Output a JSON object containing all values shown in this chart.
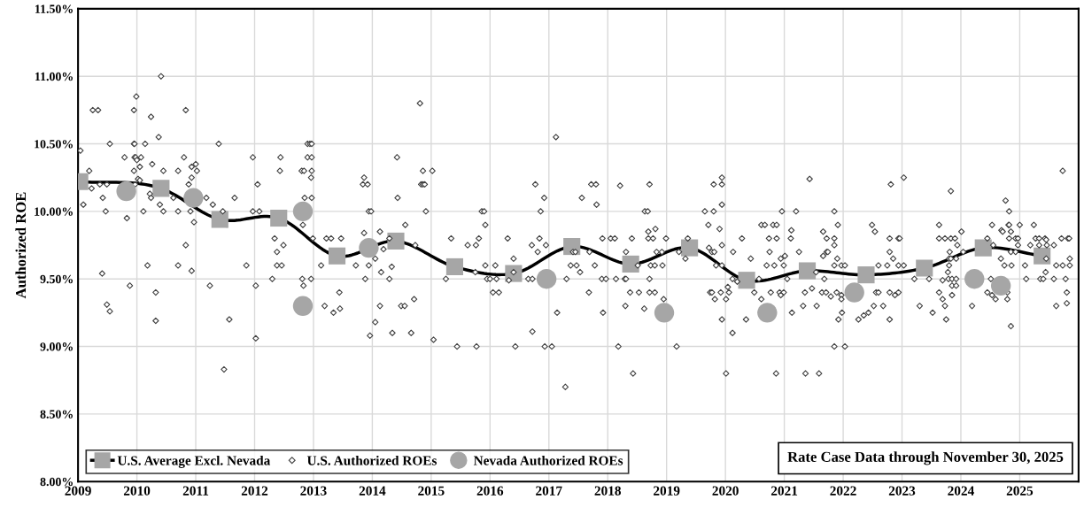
{
  "chart_data": {
    "type": "scatter",
    "ylabel": "Authorized ROE",
    "xlim": [
      2009,
      2026
    ],
    "xticks": [
      2009,
      2010,
      2011,
      2012,
      2013,
      2014,
      2015,
      2016,
      2017,
      2018,
      2019,
      2020,
      2021,
      2022,
      2023,
      2024,
      2025
    ],
    "ylim": [
      8.0,
      11.5
    ],
    "yticks": [
      {
        "value": 8.0,
        "label": "8.00%"
      },
      {
        "value": 8.5,
        "label": "8.50%"
      },
      {
        "value": 9.0,
        "label": "9.00%"
      },
      {
        "value": 9.5,
        "label": "9.50%"
      },
      {
        "value": 10.0,
        "label": "10.00%"
      },
      {
        "value": 10.5,
        "label": "10.50%"
      },
      {
        "value": 11.0,
        "label": "11.00%"
      },
      {
        "value": 11.5,
        "label": "11.50%"
      }
    ],
    "grid": true,
    "legend": "bottom left",
    "annotations": [
      "Rate Case Data through November 30, 2025"
    ],
    "series": [
      {
        "name": "U.S. Average Excl. Nevada",
        "type": "line",
        "marker": "square",
        "line_style": "solid",
        "color": "#000000",
        "colors": [
          "#a6a6a6",
          "#a6a6a6",
          "#a6a6a6",
          "#a6a6a6",
          "#a6a6a6",
          "#a6a6a6",
          "#a6a6a6",
          "#a6a6a6",
          "#a6a6a6",
          "#a6a6a6",
          "#a6a6a6",
          "#a6a6a6",
          "#a6a6a6",
          "#a6a6a6",
          "#a6a6a6",
          "#a6a6a6",
          "#a6a6a6"
        ],
        "x": [
          2009.03,
          2010.41,
          2011.41,
          2012.41,
          2013.4,
          2014.4,
          2015.4,
          2016.4,
          2017.39,
          2018.39,
          2019.39,
          2020.36,
          2021.39,
          2022.39,
          2023.38,
          2024.38,
          2025.38
        ],
        "values": [
          10.22,
          10.17,
          9.94,
          9.95,
          9.67,
          9.78,
          9.59,
          9.54,
          9.74,
          9.61,
          9.73,
          9.49,
          9.56,
          9.53,
          9.58,
          9.73,
          9.67
        ]
      },
      {
        "name": "U.S. Authorized ROEs",
        "marker": "diamond",
        "color": "#404040",
        "x": [
          2010.41,
          2009.99,
          2009.25,
          2009.34,
          2009.95,
          2010.83,
          2010.24,
          2010.37,
          2009.04,
          2009.54,
          2009.95,
          2009.96,
          2010.14,
          2011.39,
          2009.79,
          2009.96,
          2009.98,
          2010.07,
          2010.8,
          2010.0,
          2010.05,
          2010.26,
          2010.93,
          2011.0,
          2011.02,
          2009.19,
          2009.95,
          2010.45,
          2010.7,
          2010.02,
          2010.05,
          2010.93,
          2010.88,
          2009.37,
          2009.49,
          2009.23,
          2009.97,
          2010.22,
          2010.24,
          2009.42,
          2010.62,
          2011.18,
          2011.66,
          2009.09,
          2010.39,
          2011.29,
          2009.47,
          2010.11,
          2010.45,
          2010.7,
          2010.91,
          2011.46,
          2009.83,
          2010.97,
          2010.83,
          2010.18,
          2010.7,
          2010.93,
          2011.86,
          2009.41,
          2009.88,
          2011.24,
          2010.32,
          2009.49,
          2009.54,
          2010.32,
          2011.57,
          2011.48,
          2012.9,
          2012.94,
          2012.97,
          2011.97,
          2012.44,
          2012.9,
          2012.97,
          2014.42,
          2012.43,
          2012.8,
          2012.84,
          2012.97,
          2012.96,
          2013.86,
          2012.05,
          2013.84,
          2013.92,
          2012.85,
          2012.97,
          2014.43,
          2011.97,
          2012.08,
          2013.94,
          2013.98,
          2012.82,
          2014.56,
          2012.34,
          2012.99,
          2013.22,
          2013.3,
          2013.47,
          2013.86,
          2014.13,
          2014.29,
          2012.49,
          2012.38,
          2014.19,
          2012.38,
          2012.46,
          2013.13,
          2013.72,
          2013.94,
          2014.33,
          2014.05,
          2012.3,
          2012.81,
          2012.96,
          2013.88,
          2014.15,
          2014.29,
          2012.02,
          2012.83,
          2013.44,
          2013.19,
          2013.34,
          2013.45,
          2014.13,
          2014.49,
          2014.55,
          2014.05,
          2013.96,
          2014.34,
          2012.02,
          2014.66,
          2014.71,
          2014.81,
          2017.12,
          2014.86,
          2015.02,
          2014.83,
          2014.86,
          2014.89,
          2016.77,
          2016.92,
          2017.56,
          2014.91,
          2015.86,
          2015.9,
          2016.86,
          2015.92,
          2015.34,
          2015.81,
          2016.3,
          2016.84,
          2014.73,
          2015.62,
          2015.76,
          2016.71,
          2016.95,
          2016.81,
          2016.4,
          2017.41,
          2017.45,
          2015.92,
          2016.09,
          2017.37,
          2017.47,
          2017.53,
          2015.75,
          2016.4,
          2015.25,
          2015.95,
          2016.0,
          2016.11,
          2016.32,
          2016.65,
          2016.72,
          2017.3,
          2016.05,
          2016.15,
          2017.14,
          2016.72,
          2015.04,
          2015.44,
          2015.77,
          2016.43,
          2016.93,
          2017.05,
          2017.28,
          2017.72,
          2017.8,
          2018.21,
          2018.71,
          2017.81,
          2019.94,
          2019.8,
          2019.94,
          2019.94,
          2018.63,
          2018.68,
          2019.65,
          2019.8,
          2019.71,
          2019.9,
          2018.69,
          2018.81,
          2017.91,
          2018.05,
          2018.12,
          2018.41,
          2018.69,
          2018.77,
          2018.99,
          2019.36,
          2020.28,
          2019.94,
          2017.69,
          2018.31,
          2018.83,
          2018.92,
          2019.21,
          2019.72,
          2019.77,
          2019.81,
          2020.13,
          2020.43,
          2017.78,
          2018.51,
          2018.73,
          2018.8,
          2018.93,
          2019.32,
          2019.84,
          2019.94,
          2017.9,
          2017.97,
          2018.14,
          2018.29,
          2018.31,
          2018.71,
          2020.12,
          2020.2,
          2017.68,
          2018.38,
          2018.53,
          2018.71,
          2018.8,
          2018.95,
          2019.74,
          2019.77,
          2019.92,
          2020.06,
          2019.82,
          2020.01,
          2020.04,
          2017.92,
          2018.3,
          2018.62,
          2019.94,
          2020.12,
          2020.35,
          2018.18,
          2019.17,
          2018.43,
          2020.01,
          2021.43,
          2022.81,
          2023.03,
          2020.96,
          2021.2,
          2021.85,
          2020.61,
          2020.67,
          2020.81,
          2020.87,
          2021.91,
          2022.49,
          2021.12,
          2021.66,
          2022.54,
          2020.74,
          2020.87,
          2021.11,
          2021.72,
          2021.85,
          2022.79,
          2022.94,
          2022.96,
          2021.85,
          2020.75,
          2021.25,
          2021.72,
          2021.74,
          2022.79,
          2020.94,
          2021.01,
          2021.66,
          2021.9,
          2022.85,
          2020.7,
          2020.83,
          2020.99,
          2021.54,
          2021.85,
          2021.97,
          2022.03,
          2022.6,
          2022.75,
          2022.94,
          2023.03,
          2020.57,
          2021.05,
          2021.68,
          2023.21,
          2020.49,
          2020.77,
          2020.92,
          2020.99,
          2021.35,
          2021.64,
          2021.71,
          2021.89,
          2021.97,
          2020.94,
          2022.56,
          2022.6,
          2022.79,
          2022.94,
          2022.88,
          2020.61,
          2021.47,
          2021.79,
          2021.97,
          2021.32,
          2021.55,
          2022.52,
          2022.68,
          2023.3,
          2021.13,
          2021.98,
          2021.92,
          2022.26,
          2022.35,
          2022.43,
          2022.79,
          2021.85,
          2022.03,
          2020.86,
          2021.36,
          2021.59,
          2025.73,
          2023.83,
          2024.76,
          2024.82,
          2023.63,
          2024.53,
          2024.81,
          2024.82,
          2025.0,
          2025.24,
          2024.01,
          2024.69,
          2024.71,
          2024.85,
          2023.63,
          2023.73,
          2023.83,
          2023.9,
          2024.45,
          2024.82,
          2024.93,
          2024.97,
          2025.27,
          2025.33,
          2025.43,
          2025.45,
          2025.71,
          2025.82,
          2025.84,
          2023.94,
          2024.55,
          2024.97,
          2025.18,
          2025.33,
          2025.46,
          2025.58,
          2023.81,
          2024.04,
          2024.85,
          2024.93,
          2023.8,
          2023.83,
          2023.92,
          2024.68,
          2025.45,
          2025.85,
          2023.8,
          2024.74,
          2024.86,
          2025.09,
          2025.62,
          2025.73,
          2025.85,
          2025.44,
          2023.78,
          2023.69,
          2023.79,
          2023.85,
          2023.92,
          2023.46,
          2024.51,
          2025.11,
          2025.35,
          2025.4,
          2025.58,
          2025.78,
          2023.85,
          2023.92,
          2023.63,
          2024.45,
          2024.53,
          2024.59,
          2024.79,
          2024.79,
          2025.8,
          2023.69,
          2023.85,
          2023.73,
          2024.19,
          2025.62,
          2025.8,
          2023.52,
          2023.75,
          2024.85
        ],
        "values": [
          11.0,
          10.85,
          10.75,
          10.75,
          10.75,
          10.75,
          10.7,
          10.55,
          10.45,
          10.5,
          10.5,
          10.5,
          10.5,
          10.5,
          10.4,
          10.4,
          10.4,
          10.4,
          10.4,
          10.38,
          10.33,
          10.35,
          10.33,
          10.35,
          10.3,
          10.3,
          10.3,
          10.3,
          10.3,
          10.24,
          10.23,
          10.25,
          10.2,
          10.2,
          10.2,
          10.17,
          10.2,
          10.13,
          10.1,
          10.1,
          10.1,
          10.1,
          10.1,
          10.05,
          10.05,
          10.05,
          10.0,
          10.0,
          10.0,
          10.0,
          10.0,
          10.0,
          9.95,
          9.92,
          9.75,
          9.6,
          9.6,
          9.56,
          9.6,
          9.54,
          9.45,
          9.45,
          9.4,
          9.31,
          9.26,
          9.19,
          9.2,
          8.83,
          10.5,
          10.5,
          10.5,
          10.4,
          10.4,
          10.4,
          10.4,
          10.4,
          10.3,
          10.3,
          10.3,
          10.3,
          10.25,
          10.25,
          10.2,
          10.2,
          10.2,
          10.1,
          10.1,
          10.1,
          10.0,
          10.0,
          10.0,
          10.0,
          9.9,
          9.9,
          9.8,
          9.8,
          9.8,
          9.8,
          9.8,
          9.84,
          9.85,
          9.8,
          9.75,
          9.7,
          9.72,
          9.6,
          9.6,
          9.6,
          9.6,
          9.6,
          9.59,
          9.65,
          9.5,
          9.5,
          9.5,
          9.5,
          9.55,
          9.5,
          9.45,
          9.45,
          9.4,
          9.3,
          9.25,
          9.28,
          9.3,
          9.3,
          9.3,
          9.18,
          9.08,
          9.1,
          9.06,
          9.1,
          9.35,
          10.8,
          10.55,
          10.3,
          10.3,
          10.2,
          10.2,
          10.2,
          10.2,
          10.1,
          10.1,
          10.0,
          10.0,
          10.0,
          10.0,
          9.9,
          9.8,
          9.8,
          9.8,
          9.8,
          9.75,
          9.75,
          9.75,
          9.75,
          9.75,
          9.7,
          9.65,
          9.7,
          9.7,
          9.6,
          9.6,
          9.6,
          9.6,
          9.55,
          9.55,
          9.55,
          9.5,
          9.5,
          9.5,
          9.5,
          9.49,
          9.5,
          9.5,
          9.5,
          9.4,
          9.4,
          9.25,
          9.11,
          9.05,
          9.0,
          9.0,
          9.0,
          9.0,
          9.0,
          8.7,
          10.2,
          10.2,
          10.19,
          10.2,
          10.05,
          10.25,
          10.2,
          10.2,
          10.05,
          10.0,
          10.0,
          10.0,
          10.0,
          9.9,
          9.87,
          9.85,
          9.87,
          9.8,
          9.8,
          9.8,
          9.8,
          9.8,
          9.8,
          9.8,
          9.8,
          9.8,
          9.75,
          9.7,
          9.7,
          9.7,
          9.7,
          9.7,
          9.73,
          9.7,
          9.7,
          9.7,
          9.65,
          9.6,
          9.6,
          9.6,
          9.6,
          9.6,
          9.65,
          9.6,
          9.6,
          9.5,
          9.5,
          9.5,
          9.5,
          9.5,
          9.5,
          9.5,
          9.48,
          9.4,
          9.4,
          9.4,
          9.4,
          9.4,
          9.35,
          9.4,
          9.4,
          9.4,
          9.4,
          9.35,
          9.35,
          9.44,
          9.25,
          9.3,
          9.28,
          9.2,
          9.1,
          9.2,
          9.0,
          9.0,
          8.8,
          8.8,
          10.24,
          10.2,
          10.25,
          10.0,
          10.0,
          10.0,
          9.9,
          9.9,
          9.9,
          9.9,
          9.9,
          9.9,
          9.86,
          9.85,
          9.85,
          9.8,
          9.8,
          9.8,
          9.8,
          9.8,
          9.8,
          9.8,
          9.8,
          9.75,
          9.7,
          9.7,
          9.7,
          9.7,
          9.7,
          9.65,
          9.67,
          9.67,
          9.65,
          9.65,
          9.6,
          9.6,
          9.6,
          9.55,
          9.6,
          9.6,
          9.6,
          9.6,
          9.6,
          9.6,
          9.6,
          9.5,
          9.5,
          9.5,
          9.5,
          9.4,
          9.4,
          9.4,
          9.4,
          9.4,
          9.4,
          9.4,
          9.4,
          9.38,
          9.38,
          9.4,
          9.4,
          9.4,
          9.4,
          9.38,
          9.35,
          9.43,
          9.37,
          9.35,
          9.3,
          9.3,
          9.3,
          9.3,
          9.3,
          9.25,
          9.25,
          9.2,
          9.2,
          9.23,
          9.25,
          9.2,
          9.0,
          9.0,
          8.8,
          8.8,
          8.8,
          10.3,
          10.15,
          10.08,
          10.0,
          9.9,
          9.9,
          9.9,
          9.9,
          9.9,
          9.9,
          9.85,
          9.86,
          9.85,
          9.85,
          9.8,
          9.8,
          9.8,
          9.8,
          9.8,
          9.8,
          9.8,
          9.8,
          9.8,
          9.8,
          9.8,
          9.79,
          9.8,
          9.8,
          9.8,
          9.75,
          9.75,
          9.75,
          9.75,
          9.75,
          9.75,
          9.75,
          9.7,
          9.7,
          9.7,
          9.7,
          9.65,
          9.65,
          9.65,
          9.65,
          9.65,
          9.65,
          9.6,
          9.6,
          9.6,
          9.6,
          9.6,
          9.6,
          9.6,
          9.55,
          9.55,
          9.49,
          9.5,
          9.5,
          9.5,
          9.5,
          9.5,
          9.5,
          9.5,
          9.5,
          9.5,
          9.5,
          9.45,
          9.45,
          9.4,
          9.4,
          9.38,
          9.35,
          9.4,
          9.35,
          9.4,
          9.35,
          9.38,
          9.3,
          9.3,
          9.3,
          9.32,
          9.25,
          9.2,
          9.15
        ]
      },
      {
        "name": "Nevada Authorized ROEs",
        "marker": "circle",
        "color": "#a6a6a6",
        "x": [
          2009.82,
          2010.96,
          2012.82,
          2012.82,
          2013.94,
          2016.96,
          2018.96,
          2020.71,
          2022.19,
          2024.23,
          2024.68
        ],
        "values": [
          10.15,
          10.1,
          10.0,
          9.3,
          9.73,
          9.5,
          9.25,
          9.25,
          9.4,
          9.5,
          9.45
        ]
      }
    ]
  }
}
